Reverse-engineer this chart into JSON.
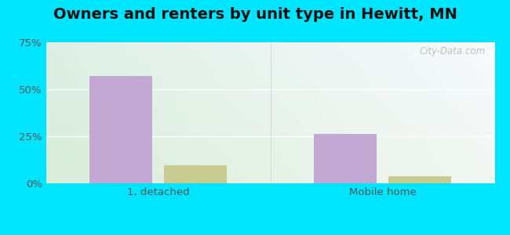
{
  "title": "Owners and renters by unit type in Hewitt, MN",
  "categories": [
    "1, detached",
    "Mobile home"
  ],
  "owner_values": [
    57.1,
    26.2
  ],
  "renter_values": [
    9.5,
    3.6
  ],
  "owner_color": "#c4a8d4",
  "renter_color": "#c8cc90",
  "bar_width": 0.28,
  "ylim": [
    0,
    75
  ],
  "yticks": [
    0,
    25,
    50,
    75
  ],
  "yticklabels": [
    "0%",
    "25%",
    "50%",
    "75%"
  ],
  "background_outer": "#00e5ff",
  "grid_color": "#e8e8e8",
  "title_fontsize": 14,
  "tick_fontsize": 9.5,
  "watermark": "City-Data.com"
}
